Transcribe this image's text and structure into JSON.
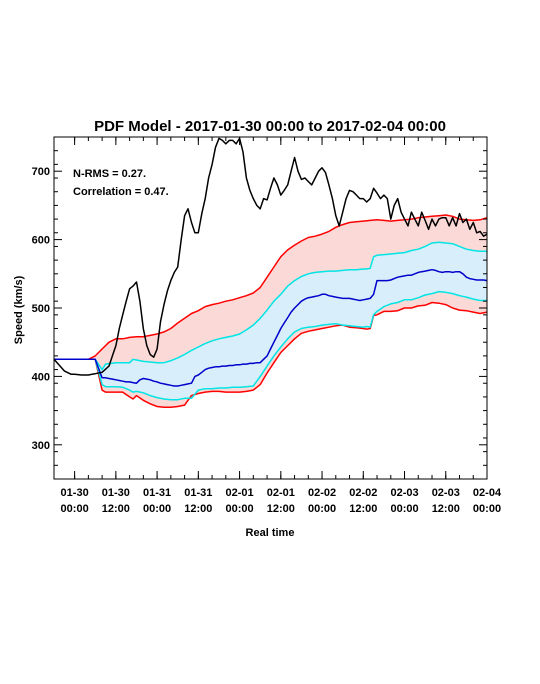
{
  "chart_data": {
    "type": "line",
    "title": "PDF Model - 2017-01-30 00:00 to 2017-02-04 00:00",
    "xlabel": "Real time",
    "ylabel": "Speed (km/s)",
    "xlim_hours": [
      -6,
      120
    ],
    "ylim": [
      250,
      750
    ],
    "x_ticks": [
      {
        "hours": 0,
        "line1": "01-30",
        "line2": "00:00"
      },
      {
        "hours": 12,
        "line1": "01-30",
        "line2": "12:00"
      },
      {
        "hours": 24,
        "line1": "01-31",
        "line2": "00:00"
      },
      {
        "hours": 36,
        "line1": "01-31",
        "line2": "12:00"
      },
      {
        "hours": 48,
        "line1": "02-01",
        "line2": "00:00"
      },
      {
        "hours": 60,
        "line1": "02-01",
        "line2": "12:00"
      },
      {
        "hours": 72,
        "line1": "02-02",
        "line2": "00:00"
      },
      {
        "hours": 84,
        "line1": "02-02",
        "line2": "12:00"
      },
      {
        "hours": 96,
        "line1": "02-03",
        "line2": "00:00"
      },
      {
        "hours": 108,
        "line1": "02-03",
        "line2": "12:00"
      },
      {
        "hours": 120,
        "line1": "02-04",
        "line2": "00:00"
      }
    ],
    "y_ticks": [
      300,
      400,
      500,
      600,
      700
    ],
    "annotations": [
      "N-RMS = 0.27.",
      "Correlation = 0.47."
    ],
    "grid": false,
    "colors": {
      "observed": "#000000",
      "median": "#0000cc",
      "inner": "#00e5e5",
      "outer": "#ff0000",
      "inner_fill": "#d8eefa",
      "outer_fill": "#fbd9d6"
    },
    "series": [
      {
        "role": "observed",
        "x": [
          -6,
          -3,
          -1,
          0,
          2,
          4,
          5,
          6,
          8,
          10,
          11,
          12,
          13,
          14,
          15,
          16,
          17,
          18,
          19,
          20,
          21,
          22,
          23,
          24,
          25,
          26,
          27,
          28,
          29,
          30,
          31,
          32,
          33,
          34,
          35,
          36,
          37,
          38,
          39,
          40,
          41,
          42,
          43,
          44,
          45,
          46,
          47,
          48,
          49,
          50,
          51,
          52,
          53,
          54,
          55,
          56,
          57,
          58,
          59,
          60,
          61,
          62,
          63,
          64,
          65,
          66,
          67,
          68,
          69,
          70,
          71,
          72,
          73,
          74,
          75,
          76,
          77,
          78,
          79,
          80,
          81,
          82,
          83,
          84,
          85,
          86,
          87,
          88,
          89,
          90,
          91,
          92,
          93,
          94,
          95,
          96,
          97,
          98,
          99,
          100,
          101,
          102,
          103,
          104,
          105,
          106,
          107,
          108,
          109,
          110,
          111,
          112,
          113,
          114,
          115,
          116,
          117,
          118,
          119,
          120
        ],
        "y": [
          425,
          408,
          403,
          403,
          402,
          402,
          403,
          404,
          406,
          415,
          430,
          445,
          470,
          490,
          510,
          528,
          532,
          538,
          510,
          470,
          445,
          432,
          428,
          440,
          480,
          505,
          525,
          540,
          552,
          560,
          600,
          635,
          645,
          625,
          610,
          610,
          638,
          660,
          690,
          710,
          735,
          748,
          745,
          740,
          745,
          745,
          740,
          748,
          728,
          690,
          672,
          660,
          650,
          645,
          660,
          658,
          675,
          690,
          680,
          665,
          672,
          680,
          700,
          720,
          700,
          688,
          690,
          685,
          680,
          690,
          700,
          705,
          698,
          680,
          660,
          635,
          620,
          640,
          660,
          672,
          670,
          665,
          660,
          660,
          655,
          660,
          675,
          668,
          660,
          665,
          660,
          630,
          650,
          660,
          640,
          630,
          620,
          640,
          630,
          620,
          640,
          628,
          615,
          630,
          620,
          630,
          632,
          632,
          620,
          632,
          620,
          638,
          625,
          630,
          615,
          625,
          610,
          612,
          605,
          608
        ]
      },
      {
        "role": "median",
        "x": [
          -6,
          -3,
          0,
          2,
          4,
          6,
          8,
          9,
          10,
          11,
          12,
          13,
          14,
          15,
          16,
          17,
          18,
          19,
          20,
          21,
          22,
          23,
          24,
          25,
          26,
          27,
          28,
          29,
          30,
          31,
          32,
          33,
          34,
          35,
          36,
          37,
          38,
          39,
          40,
          41,
          42,
          43,
          44,
          45,
          46,
          47,
          48,
          49,
          50,
          51,
          52,
          53,
          54,
          55,
          56,
          57,
          58,
          59,
          60,
          61,
          62,
          63,
          64,
          65,
          66,
          67,
          68,
          69,
          70,
          71,
          72,
          73,
          74,
          75,
          76,
          77,
          78,
          79,
          80,
          81,
          82,
          83,
          84,
          85,
          86,
          87,
          88,
          89,
          90,
          91,
          92,
          93,
          94,
          95,
          96,
          97,
          98,
          99,
          100,
          101,
          102,
          103,
          104,
          105,
          106,
          107,
          108,
          109,
          110,
          111,
          112,
          113,
          114,
          115,
          116,
          117,
          118,
          119,
          120
        ],
        "y": [
          425,
          425,
          425,
          425,
          425,
          425,
          398,
          398,
          397,
          396,
          395,
          394,
          393,
          392,
          392,
          391,
          390,
          395,
          397,
          396,
          395,
          393,
          392,
          390,
          389,
          388,
          387,
          386,
          386,
          387,
          388,
          389,
          390,
          400,
          402,
          406,
          410,
          412,
          413,
          414,
          414,
          415,
          415,
          416,
          416,
          417,
          417,
          418,
          418,
          419,
          419,
          420,
          420,
          425,
          430,
          440,
          450,
          460,
          470,
          478,
          486,
          494,
          500,
          505,
          510,
          513,
          515,
          516,
          517,
          518,
          520,
          520,
          518,
          517,
          516,
          515,
          514,
          514,
          514,
          513,
          512,
          511,
          512,
          513,
          514,
          520,
          540,
          540,
          540,
          540,
          541,
          543,
          545,
          546,
          547,
          548,
          548,
          550,
          552,
          553,
          554,
          555,
          556,
          555,
          553,
          552,
          553,
          553,
          552,
          553,
          553,
          550,
          545,
          543,
          542,
          541,
          541,
          541,
          540
        ]
      },
      {
        "role": "inner_upper",
        "x": [
          -6,
          -3,
          0,
          2,
          4,
          6,
          8,
          9,
          12,
          14,
          16,
          17,
          18,
          20,
          22,
          24,
          26,
          28,
          30,
          32,
          34,
          36,
          38,
          40,
          42,
          44,
          46,
          48,
          50,
          52,
          54,
          56,
          58,
          60,
          62,
          64,
          66,
          68,
          70,
          72,
          74,
          76,
          78,
          80,
          82,
          84,
          85,
          86,
          87,
          88,
          90,
          92,
          94,
          96,
          98,
          100,
          102,
          104,
          106,
          108,
          110,
          112,
          114,
          116,
          118,
          120
        ],
        "y": [
          425,
          425,
          425,
          425,
          425,
          425,
          410,
          418,
          420,
          420,
          420,
          425,
          424,
          422,
          421,
          420,
          420,
          423,
          427,
          432,
          438,
          443,
          448,
          452,
          455,
          457,
          459,
          462,
          468,
          475,
          485,
          497,
          510,
          520,
          532,
          540,
          546,
          550,
          552,
          553,
          554,
          554,
          555,
          556,
          556,
          557,
          557,
          558,
          575,
          577,
          578,
          579,
          580,
          581,
          584,
          586,
          590,
          595,
          596,
          595,
          594,
          590,
          586,
          584,
          583,
          583
        ]
      },
      {
        "role": "inner_lower",
        "x": [
          -6,
          -3,
          0,
          2,
          4,
          6,
          8,
          9,
          12,
          14,
          16,
          17,
          18,
          20,
          22,
          24,
          26,
          28,
          30,
          32,
          34,
          36,
          38,
          40,
          42,
          44,
          46,
          48,
          50,
          52,
          54,
          56,
          58,
          60,
          62,
          64,
          66,
          68,
          70,
          72,
          74,
          76,
          78,
          80,
          82,
          84,
          85,
          86,
          87,
          88,
          90,
          92,
          94,
          96,
          98,
          100,
          102,
          104,
          106,
          108,
          110,
          112,
          114,
          116,
          118,
          120
        ],
        "y": [
          425,
          425,
          425,
          425,
          425,
          425,
          388,
          385,
          385,
          384,
          380,
          377,
          378,
          376,
          372,
          369,
          367,
          366,
          366,
          368,
          368,
          380,
          382,
          382,
          383,
          383,
          384,
          384,
          385,
          386,
          400,
          415,
          430,
          443,
          455,
          465,
          470,
          472,
          473,
          475,
          476,
          477,
          475,
          474,
          473,
          472,
          473,
          472,
          490,
          495,
          502,
          506,
          508,
          512,
          512,
          515,
          519,
          521,
          524,
          523,
          521,
          518,
          516,
          513,
          511,
          511
        ]
      },
      {
        "role": "outer_upper",
        "x": [
          -6,
          -3,
          0,
          2,
          4,
          6,
          8,
          10,
          12,
          14,
          16,
          18,
          20,
          22,
          24,
          26,
          28,
          30,
          32,
          34,
          36,
          38,
          40,
          42,
          44,
          46,
          48,
          50,
          52,
          54,
          56,
          58,
          60,
          62,
          64,
          66,
          68,
          70,
          72,
          74,
          76,
          78,
          80,
          82,
          84,
          86,
          88,
          90,
          92,
          94,
          96,
          98,
          100,
          102,
          104,
          106,
          108,
          110,
          112,
          114,
          116,
          118,
          120
        ],
        "y": [
          425,
          425,
          425,
          425,
          425,
          430,
          440,
          450,
          455,
          455,
          457,
          458,
          458,
          460,
          462,
          465,
          470,
          478,
          485,
          492,
          496,
          502,
          505,
          507,
          510,
          512,
          515,
          518,
          522,
          530,
          545,
          560,
          575,
          585,
          592,
          598,
          603,
          605,
          608,
          612,
          618,
          622,
          625,
          626,
          627,
          628,
          629,
          628,
          627,
          628,
          629,
          630,
          632,
          633,
          634,
          635,
          636,
          634,
          630,
          629,
          628,
          629,
          632
        ]
      },
      {
        "role": "outer_lower",
        "x": [
          -6,
          -3,
          0,
          2,
          4,
          6,
          8,
          9,
          12,
          14,
          16,
          17,
          18,
          20,
          22,
          24,
          26,
          28,
          30,
          32,
          33,
          34,
          36,
          38,
          40,
          42,
          44,
          46,
          48,
          50,
          52,
          54,
          56,
          58,
          60,
          62,
          64,
          66,
          68,
          70,
          72,
          74,
          76,
          78,
          80,
          82,
          84,
          85,
          86,
          87,
          88,
          90,
          92,
          94,
          96,
          98,
          100,
          102,
          104,
          106,
          108,
          110,
          112,
          114,
          116,
          118,
          120
        ],
        "y": [
          425,
          425,
          425,
          425,
          425,
          425,
          380,
          377,
          377,
          377,
          370,
          367,
          372,
          365,
          360,
          356,
          355,
          355,
          356,
          358,
          365,
          372,
          375,
          377,
          378,
          378,
          377,
          377,
          377,
          378,
          380,
          388,
          405,
          420,
          435,
          445,
          455,
          463,
          466,
          468,
          470,
          472,
          474,
          475,
          472,
          471,
          470,
          469,
          470,
          489,
          490,
          495,
          495,
          496,
          500,
          500,
          503,
          504,
          508,
          507,
          505,
          500,
          497,
          496,
          494,
          492,
          494
        ]
      }
    ]
  }
}
